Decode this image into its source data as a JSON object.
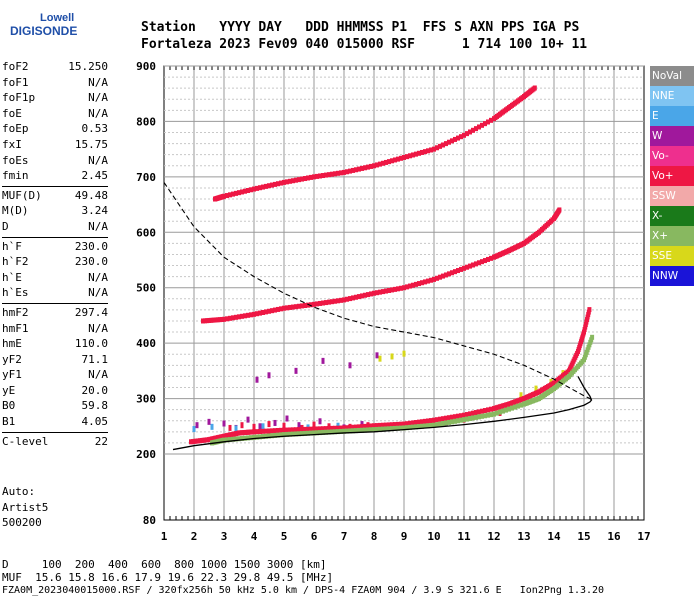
{
  "logo": {
    "line1": "Lowell",
    "line2": "DIGISONDE"
  },
  "header": {
    "line1": "Station   YYYY DAY   DDD HHMMSS P1  FFS S AXN PPS IGA PS",
    "line2": "Fortaleza 2023 Fev09 040 015000 RSF      1 714 100 10+ 11"
  },
  "params": [
    [
      {
        "k": "foF2",
        "v": "15.250"
      },
      {
        "k": "foF1",
        "v": "N/A"
      },
      {
        "k": "foF1p",
        "v": "N/A"
      },
      {
        "k": "foE",
        "v": "N/A"
      },
      {
        "k": "foEp",
        "v": "0.53"
      },
      {
        "k": "fxI",
        "v": "15.75"
      },
      {
        "k": "foEs",
        "v": "N/A"
      },
      {
        "k": "fmin",
        "v": "2.45"
      }
    ],
    [
      {
        "k": "MUF(D)",
        "v": "49.48"
      },
      {
        "k": "M(D)",
        "v": "3.24"
      },
      {
        "k": "D",
        "v": "N/A"
      }
    ],
    [
      {
        "k": "h`F",
        "v": "230.0"
      },
      {
        "k": "h`F2",
        "v": "230.0"
      },
      {
        "k": "h`E",
        "v": "N/A"
      },
      {
        "k": "h`Es",
        "v": "N/A"
      }
    ],
    [
      {
        "k": "hmF2",
        "v": "297.4"
      },
      {
        "k": "hmF1",
        "v": "N/A"
      },
      {
        "k": "hmE",
        "v": "110.0"
      },
      {
        "k": "yF2",
        "v": "71.1"
      },
      {
        "k": "yF1",
        "v": "N/A"
      },
      {
        "k": "yE",
        "v": "20.0"
      },
      {
        "k": "B0",
        "v": "59.8"
      },
      {
        "k": "B1",
        "v": "4.05"
      }
    ],
    [
      {
        "k": "C-level",
        "v": "22"
      }
    ]
  ],
  "auto": {
    "line1": "Auto:",
    "line2": "Artist5",
    "line3": "500200"
  },
  "footer": {
    "line1": "D     100  200  400  600  800 1000 1500 3000 [km]",
    "line2": "MUF  15.6 15.8 16.6 17.9 19.6 22.3 29.8 49.5 [MHz]",
    "line3": "FZA0M_2023040015000.RSF / 320fx256h 50 kHz 5.0 km / DPS-4 FZA0M 904 / 3.9 S 321.6 E   Ion2Png 1.3.20"
  },
  "legend": [
    {
      "label": "NoVal",
      "color": "#8c8c8c"
    },
    {
      "label": "NNE",
      "color": "#7fc4f2"
    },
    {
      "label": "E",
      "color": "#4aa6e8"
    },
    {
      "label": "W",
      "color": "#a0189c"
    },
    {
      "label": "Vo-",
      "color": "#ee2f8e"
    },
    {
      "label": "Vo+",
      "color": "#ee1744"
    },
    {
      "label": "SSW",
      "color": "#f2a9a9"
    },
    {
      "label": "X-",
      "color": "#1a7a1a"
    },
    {
      "label": "X+",
      "color": "#88b860"
    },
    {
      "label": "SSE",
      "color": "#d8d81a"
    },
    {
      "label": "NNW",
      "color": "#1a14d8"
    }
  ],
  "chart_data": {
    "type": "scatter",
    "x_label_unit": "MHz",
    "y_label_unit": "km",
    "xlim": [
      1,
      17
    ],
    "ylim": [
      80,
      900
    ],
    "x_ticks": [
      1,
      2,
      3,
      4,
      5,
      6,
      7,
      8,
      9,
      10,
      11,
      12,
      13,
      14,
      15,
      16,
      17
    ],
    "y_ticks": [
      80,
      200,
      300,
      400,
      500,
      600,
      700,
      800,
      900
    ],
    "grid": true,
    "traces": [
      {
        "name": "O-trace 1st hop",
        "color": "#ee1744",
        "x": [
          1.9,
          2.5,
          3,
          3.5,
          4,
          5,
          6,
          7,
          8,
          9,
          10,
          11,
          12,
          12.5,
          13,
          13.5,
          14,
          14.5,
          14.8,
          15,
          15.2
        ],
        "y": [
          222,
          226,
          232,
          238,
          240,
          243,
          245,
          247,
          251,
          254,
          261,
          270,
          282,
          290,
          300,
          312,
          328,
          350,
          385,
          420,
          465
        ]
      },
      {
        "name": "X-trace 1st hop",
        "color": "#88b860",
        "x": [
          2.6,
          3,
          4,
          5,
          6,
          7,
          8,
          9,
          10,
          11,
          12,
          13,
          13.5,
          14,
          14.5,
          15,
          15.3
        ],
        "y": [
          220,
          225,
          230,
          235,
          238,
          241,
          244,
          247,
          252,
          262,
          272,
          290,
          300,
          318,
          340,
          370,
          415
        ]
      },
      {
        "name": "O-trace 2nd hop",
        "color": "#ee1744",
        "x": [
          2.3,
          3,
          4,
          5,
          6,
          7,
          8,
          9,
          10,
          11,
          12,
          12.5,
          13,
          13.5,
          14,
          14.2
        ],
        "y": [
          440,
          443,
          452,
          463,
          470,
          478,
          490,
          500,
          515,
          535,
          555,
          567,
          580,
          600,
          625,
          642
        ]
      },
      {
        "name": "O-trace 3rd hop",
        "color": "#ee1744",
        "x": [
          2.7,
          3,
          4,
          5,
          6,
          7,
          8,
          9,
          10,
          11,
          12,
          12.5,
          13,
          13.4
        ],
        "y": [
          660,
          665,
          678,
          690,
          700,
          708,
          720,
          735,
          750,
          775,
          805,
          825,
          845,
          862
        ]
      }
    ],
    "scatter_echoes": [
      {
        "color": "#a0189c",
        "x": [
          2.1,
          2.5,
          3,
          3.4,
          3.8,
          4.2,
          4.7,
          5.1,
          5.5,
          6.2,
          7,
          7.6,
          8.3,
          9.1,
          10.4
        ],
        "y": [
          252,
          258,
          255,
          247,
          262,
          250,
          256,
          264,
          252,
          259,
          248,
          254,
          250,
          253,
          256
        ]
      },
      {
        "color": "#ee1744",
        "x": [
          3.2,
          3.6,
          4,
          4.5,
          5,
          5.6,
          6,
          6.5,
          7.2,
          7.8,
          8.6,
          9.4,
          10,
          11,
          12.2
        ],
        "y": [
          247,
          252,
          249,
          254,
          251,
          247,
          253,
          250,
          249,
          252,
          250,
          251,
          254,
          262,
          274
        ]
      },
      {
        "color": "#4aa6e8",
        "x": [
          2,
          2.6,
          3.4,
          4.3,
          5.8,
          6.8
        ],
        "y": [
          245,
          249,
          246,
          250,
          248,
          251
        ]
      },
      {
        "color": "#d8d81a",
        "x": [
          8.2,
          8.6,
          9,
          12.9,
          13.4,
          13.9,
          14.3
        ],
        "y": [
          372,
          376,
          381,
          306,
          318,
          330,
          346
        ]
      },
      {
        "color": "#a0189c",
        "x": [
          4.1,
          4.5,
          5.4,
          6.3,
          7.2,
          8.1
        ],
        "y": [
          334,
          342,
          350,
          368,
          360,
          378
        ]
      }
    ],
    "model_profile": {
      "color": "#000",
      "x": [
        1.3,
        2,
        3,
        4,
        5,
        6,
        7,
        8,
        9,
        10,
        11,
        12,
        13,
        14,
        14.5,
        15,
        15.2,
        15.25,
        15.2,
        15.0,
        14.8
      ],
      "y": [
        208,
        215,
        222,
        228,
        232,
        235,
        238,
        240,
        244,
        248,
        253,
        259,
        266,
        274,
        280,
        288,
        294,
        297.4,
        304,
        320,
        340
      ]
    },
    "dashed_profile": {
      "color": "#000",
      "x": [
        1,
        2,
        3,
        4,
        5,
        6,
        7,
        8,
        9,
        10,
        11,
        12,
        13,
        14,
        15,
        15.2,
        15.25
      ],
      "y": [
        690,
        610,
        555,
        520,
        490,
        465,
        445,
        430,
        420,
        410,
        395,
        380,
        360,
        335,
        305,
        300,
        297.4
      ]
    }
  }
}
